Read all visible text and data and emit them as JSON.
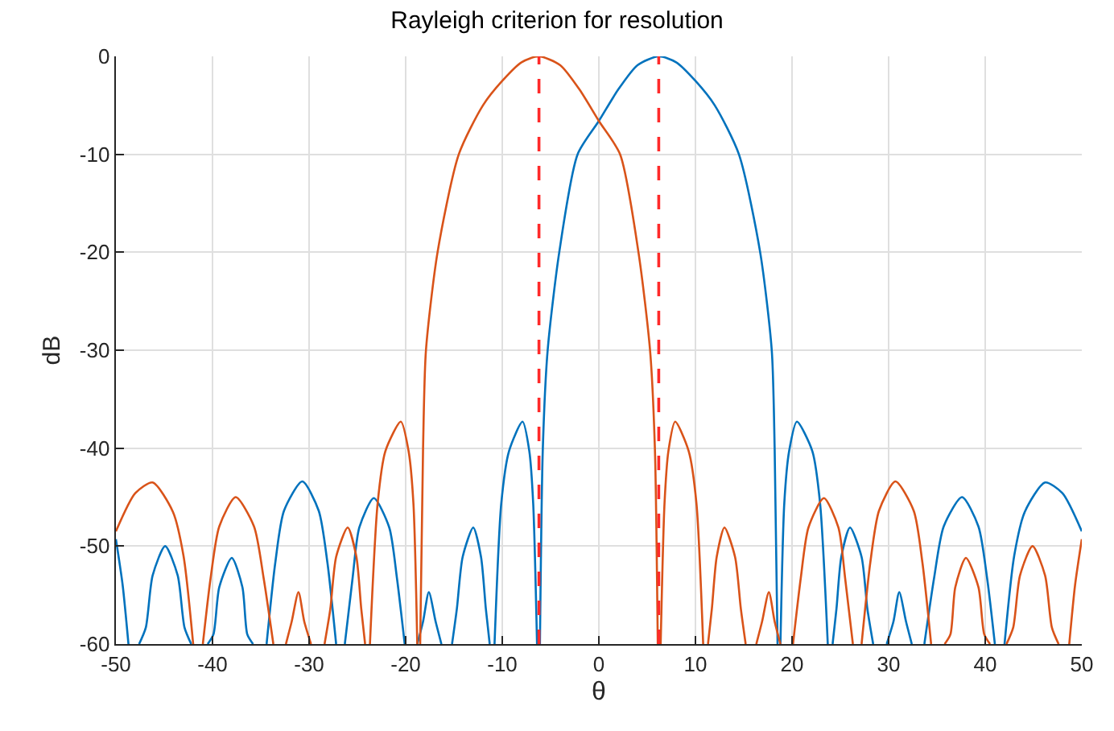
{
  "chart_data": {
    "type": "line",
    "title": "Rayleigh criterion for resolution",
    "xlabel": "θ",
    "ylabel": "dB",
    "xlim": [
      -50,
      50
    ],
    "xticks": [
      -50,
      -40,
      -30,
      -20,
      -10,
      0,
      10,
      20,
      30,
      40,
      50
    ],
    "ylim": [
      -60,
      0
    ],
    "yticks": [
      -60,
      -50,
      -40,
      -30,
      -20,
      -10,
      0
    ],
    "grid": true,
    "marker": "none",
    "line_style": "solid",
    "series": [
      {
        "color": "#0072bd",
        "x": [
          -50,
          -49.3,
          -48.7,
          -48.15,
          -47.6,
          -46.9,
          -46.2,
          -44.9,
          -43.6,
          -42.9,
          -42.2,
          -41.35,
          -40.5,
          -39.9,
          -39.3,
          -38,
          -36.9,
          -36.4,
          -35.8,
          -35.1,
          -34.4,
          -33.5,
          -32.6,
          -30.7,
          -29,
          -28.1,
          -27.2,
          -26.75,
          -26.3,
          -25.5,
          -24.8,
          -23.3,
          -21.7,
          -20.9,
          -20.1,
          -19.45,
          -18.8,
          -18.2,
          -17.6,
          -16.9,
          -16.3,
          -15.75,
          -15.2,
          -14.7,
          -14.1,
          -13,
          -12.2,
          -11.7,
          -11.3,
          -11.05,
          -10.8,
          -10.1,
          -9.3,
          -7.9,
          -7.2,
          -6.8,
          -6.4,
          -6.25,
          -6.1,
          -5.8,
          -5.3,
          -4.1,
          -2.2,
          0,
          2,
          4,
          6.2,
          8,
          10,
          12,
          14.5,
          16.7,
          17.9,
          18.2,
          18.5,
          18.65,
          18.8,
          19.2,
          19.7,
          20.5,
          22.1,
          22.9,
          23.7,
          23.95,
          24.2,
          24.6,
          25.1,
          26,
          27.2,
          27.8,
          28.4,
          29.1,
          29.8,
          30.5,
          31.1,
          31.8,
          32.4,
          33.05,
          33.7,
          34.7,
          35.7,
          37.6,
          39.3,
          40.2,
          41,
          41.5,
          42,
          43,
          44.1,
          46.2,
          48,
          50
        ],
        "values": [
          -49.3,
          -54,
          -60,
          null,
          -60,
          -58.3,
          -53,
          -50,
          -53,
          -58.3,
          -60,
          null,
          -60,
          -59,
          -54.2,
          -51.2,
          -54.2,
          -59,
          -60,
          null,
          -60,
          -51.7,
          -46.4,
          -43.4,
          -46.4,
          -51.7,
          -60,
          null,
          -60,
          -53.3,
          -48.1,
          -45.1,
          -48.1,
          -53.3,
          -60,
          null,
          -60,
          -57.7,
          -54.7,
          -57.7,
          -60,
          null,
          -60,
          -56.4,
          -51.1,
          -48.1,
          -51.1,
          -56.4,
          -60,
          null,
          -60,
          -45.6,
          -40.3,
          -37.3,
          -40.3,
          -45.6,
          -60,
          null,
          -60,
          -40,
          -30,
          -20,
          -10,
          -6.6,
          -3.4,
          -0.9,
          0,
          -0.6,
          -2.5,
          -5,
          -10,
          -20,
          -30,
          -40,
          -60,
          null,
          -60,
          -45.6,
          -40.3,
          -37.3,
          -40.3,
          -45.6,
          -60,
          null,
          -60,
          -56.4,
          -51.1,
          -48.1,
          -51.1,
          -56.4,
          -60,
          null,
          -60,
          -57.7,
          -54.7,
          -57.7,
          -60,
          null,
          -60,
          -53.3,
          -48,
          -45,
          -48,
          -53.3,
          -60,
          null,
          -60,
          -51,
          -46.5,
          -43.5,
          -44.6,
          -48.5
        ]
      },
      {
        "color": "#d95319",
        "x": [
          -50,
          -48,
          -46.2,
          -44.1,
          -43,
          -42,
          -41.5,
          -41,
          -40.2,
          -39.3,
          -37.6,
          -35.7,
          -34.7,
          -33.7,
          -33.05,
          -32.4,
          -31.8,
          -31.1,
          -30.5,
          -29.8,
          -29.1,
          -28.4,
          -27.8,
          -27.2,
          -26,
          -25.1,
          -24.6,
          -24.2,
          -23.95,
          -23.7,
          -22.9,
          -22.1,
          -20.5,
          -19.7,
          -19.2,
          -18.8,
          -18.65,
          -18.5,
          -18.2,
          -17.9,
          -16.7,
          -14.5,
          -12,
          -10,
          -8,
          -6.2,
          -4,
          -2,
          0,
          2.2,
          4.1,
          5.3,
          5.8,
          6.1,
          6.25,
          6.4,
          6.8,
          7.2,
          7.9,
          9.3,
          10.1,
          10.8,
          11.05,
          11.3,
          11.7,
          12.2,
          13,
          14.1,
          14.7,
          15.2,
          15.75,
          16.3,
          16.9,
          17.6,
          18.2,
          18.8,
          19.45,
          20.1,
          20.9,
          21.7,
          23.3,
          24.8,
          25.5,
          26.3,
          26.75,
          27.2,
          28.1,
          29,
          30.7,
          32.6,
          33.5,
          34.4,
          35.1,
          35.8,
          36.4,
          36.9,
          38,
          39.3,
          39.9,
          40.5,
          41.35,
          42.2,
          42.9,
          43.6,
          44.9,
          46.2,
          46.9,
          47.6,
          48.15,
          48.7,
          49.3,
          50
        ],
        "values": [
          -48.5,
          -44.6,
          -43.5,
          -46.5,
          -51,
          -60,
          null,
          -60,
          -53.3,
          -48,
          -45,
          -48,
          -53.3,
          -60,
          null,
          -60,
          -57.7,
          -54.7,
          -57.7,
          -60,
          null,
          -60,
          -56.4,
          -51.1,
          -48.1,
          -51.1,
          -56.4,
          -60,
          null,
          -60,
          -45.6,
          -40.3,
          -37.3,
          -40.3,
          -45.6,
          -60,
          null,
          -60,
          -40,
          -30,
          -20,
          -10,
          -5,
          -2.5,
          -0.6,
          0,
          -0.9,
          -3.4,
          -6.6,
          -10,
          -20,
          -30,
          -40,
          -60,
          null,
          -60,
          -45.6,
          -40.3,
          -37.3,
          -40.3,
          -45.6,
          -60,
          null,
          -60,
          -56.4,
          -51.1,
          -48.1,
          -51.1,
          -56.4,
          -60,
          null,
          -60,
          -57.7,
          -54.7,
          -57.7,
          -60,
          null,
          -60,
          -53.3,
          -48.1,
          -45.1,
          -48.1,
          -53.3,
          -60,
          null,
          -60,
          -51.7,
          -46.4,
          -43.4,
          -46.4,
          -51.7,
          -60,
          null,
          -60,
          -59,
          -54.2,
          -51.2,
          -54.2,
          -59,
          -60,
          null,
          -60,
          -58.3,
          -53,
          -50,
          -53,
          -58.3,
          -60,
          null,
          -60,
          -54,
          -49.3
        ]
      }
    ],
    "ref_lines": [
      {
        "axis": "x",
        "value": -6.2,
        "color": "#ff2a2a",
        "line_style": "dashed"
      },
      {
        "axis": "x",
        "value": 6.2,
        "color": "#ff2a2a",
        "line_style": "dashed"
      }
    ]
  }
}
